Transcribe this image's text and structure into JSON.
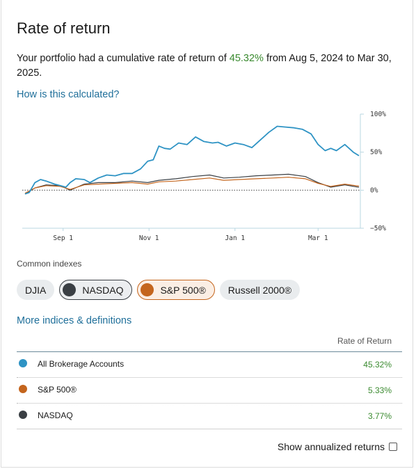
{
  "title": "Rate of return",
  "summary": {
    "prefix": "Your portfolio had a cumulative rate of return of ",
    "value": "45.32%",
    "suffix": " from Aug 5, 2024 to Mar 30, 2025."
  },
  "how_calculated_link": "How is this calculated?",
  "chart_data": {
    "type": "line",
    "x_tick_labels": [
      "Sep 1",
      "Nov 1",
      "Jan 1",
      "Mar 1"
    ],
    "y_tick_labels": [
      "100%",
      "50%",
      "0%",
      "−50%"
    ],
    "ylim": [
      -50,
      100
    ],
    "x_range": [
      "2024-08-05",
      "2025-03-30"
    ],
    "zero_line": "dotted",
    "series": [
      {
        "name": "All Brokerage Accounts",
        "color": "#2e93c4",
        "x": [
          "2024-08-05",
          "2024-08-08",
          "2024-08-12",
          "2024-08-16",
          "2024-08-20",
          "2024-08-26",
          "2024-08-30",
          "2024-09-03",
          "2024-09-06",
          "2024-09-10",
          "2024-09-16",
          "2024-09-20",
          "2024-09-26",
          "2024-10-02",
          "2024-10-08",
          "2024-10-14",
          "2024-10-20",
          "2024-10-26",
          "2024-10-31",
          "2024-11-04",
          "2024-11-08",
          "2024-11-12",
          "2024-11-16",
          "2024-11-22",
          "2024-11-28",
          "2024-12-04",
          "2024-12-10",
          "2024-12-16",
          "2024-12-20",
          "2024-12-26",
          "2025-01-01",
          "2025-01-07",
          "2025-01-13",
          "2025-01-19",
          "2025-01-25",
          "2025-01-31",
          "2025-02-06",
          "2025-02-12",
          "2025-02-18",
          "2025-02-24",
          "2025-03-01",
          "2025-03-06",
          "2025-03-10",
          "2025-03-14",
          "2025-03-20",
          "2025-03-26",
          "2025-03-30"
        ],
        "values": [
          -5,
          -3,
          10,
          14,
          12,
          8,
          6,
          4,
          10,
          15,
          14,
          10,
          16,
          20,
          19,
          22,
          22,
          28,
          38,
          40,
          58,
          55,
          54,
          62,
          60,
          70,
          64,
          62,
          63,
          58,
          62,
          60,
          56,
          66,
          76,
          84,
          83,
          82,
          80,
          74,
          60,
          52,
          55,
          52,
          60,
          50,
          45.32
        ]
      },
      {
        "name": "S&P 500®",
        "color": "#c4651d",
        "x": [
          "2024-08-05",
          "2024-08-12",
          "2024-08-20",
          "2024-08-30",
          "2024-09-06",
          "2024-09-16",
          "2024-09-26",
          "2024-10-08",
          "2024-10-20",
          "2024-10-31",
          "2024-11-08",
          "2024-11-20",
          "2024-12-02",
          "2024-12-14",
          "2024-12-24",
          "2025-01-04",
          "2025-01-16",
          "2025-01-28",
          "2025-02-08",
          "2025-02-20",
          "2025-03-01",
          "2025-03-10",
          "2025-03-20",
          "2025-03-30"
        ],
        "values": [
          -4,
          3,
          6,
          5,
          1,
          7,
          8,
          9,
          10,
          8,
          11,
          12,
          14,
          16,
          13,
          14,
          15,
          16,
          17,
          15,
          9,
          5,
          8,
          5.33
        ]
      },
      {
        "name": "NASDAQ",
        "color": "#3a3f44",
        "x": [
          "2024-08-05",
          "2024-08-12",
          "2024-08-20",
          "2024-08-30",
          "2024-09-06",
          "2024-09-16",
          "2024-09-26",
          "2024-10-08",
          "2024-10-20",
          "2024-10-31",
          "2024-11-08",
          "2024-11-20",
          "2024-12-02",
          "2024-12-14",
          "2024-12-24",
          "2025-01-04",
          "2025-01-16",
          "2025-01-28",
          "2025-02-08",
          "2025-02-20",
          "2025-03-01",
          "2025-03-10",
          "2025-03-20",
          "2025-03-30"
        ],
        "values": [
          -5,
          3,
          7,
          6,
          0,
          8,
          10,
          10,
          12,
          10,
          13,
          15,
          18,
          20,
          16,
          17,
          19,
          20,
          21,
          18,
          10,
          4,
          7,
          3.77
        ]
      }
    ]
  },
  "common_indexes_label": "Common indexes",
  "chips": [
    {
      "label": "DJIA",
      "selected": false,
      "color": ""
    },
    {
      "label": "NASDAQ",
      "selected": true,
      "color": "#3a3f44"
    },
    {
      "label": "S&P 500®",
      "selected": true,
      "color": "#c4651d"
    },
    {
      "label": "Russell 2000®",
      "selected": false,
      "color": ""
    }
  ],
  "more_indices_link": "More indices & definitions",
  "table": {
    "header": "Rate of Return",
    "rows": [
      {
        "name": "All Brokerage Accounts",
        "value": "45.32%",
        "color": "#2e93c4"
      },
      {
        "name": "S&P 500®",
        "value": "5.33%",
        "color": "#c4651d"
      },
      {
        "name": "NASDAQ",
        "value": "3.77%",
        "color": "#3a3f44"
      }
    ]
  },
  "annualized_label": "Show annualized returns"
}
